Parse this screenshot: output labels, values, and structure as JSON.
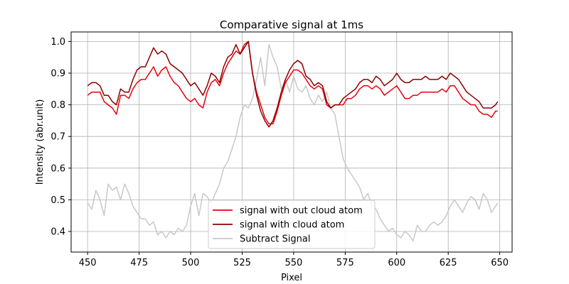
{
  "chart_data": {
    "type": "line",
    "title": "Comparative signal at 1ms",
    "xlabel": "Pixel",
    "ylabel": "Intensity (abr.unit)",
    "xlim": [
      442,
      656
    ],
    "ylim": [
      0.335,
      1.03
    ],
    "xticks": [
      450,
      475,
      500,
      525,
      550,
      575,
      600,
      625,
      650
    ],
    "yticks": [
      0.4,
      0.5,
      0.6,
      0.7,
      0.8,
      0.9,
      1.0
    ],
    "grid": true,
    "legend_position": "lower-center",
    "series": [
      {
        "name": "signal with out cloud atom",
        "color": "#e8000b",
        "x": [
          450,
          452,
          454,
          456,
          458,
          460,
          462,
          464,
          466,
          468,
          470,
          472,
          474,
          476,
          478,
          480,
          482,
          484,
          486,
          488,
          490,
          492,
          494,
          496,
          498,
          500,
          502,
          504,
          506,
          508,
          510,
          512,
          514,
          516,
          518,
          520,
          522,
          524,
          526,
          528,
          530,
          532,
          534,
          536,
          538,
          540,
          542,
          544,
          546,
          548,
          550,
          552,
          554,
          556,
          558,
          560,
          562,
          564,
          566,
          568,
          570,
          572,
          574,
          576,
          578,
          580,
          582,
          584,
          586,
          588,
          590,
          592,
          594,
          596,
          598,
          600,
          602,
          604,
          606,
          608,
          610,
          612,
          614,
          616,
          618,
          620,
          622,
          624,
          626,
          628,
          630,
          632,
          634,
          636,
          638,
          640,
          642,
          644,
          646,
          648,
          649
        ],
        "y": [
          0.83,
          0.84,
          0.84,
          0.84,
          0.81,
          0.8,
          0.79,
          0.77,
          0.83,
          0.83,
          0.82,
          0.85,
          0.87,
          0.88,
          0.88,
          0.9,
          0.92,
          0.89,
          0.91,
          0.92,
          0.89,
          0.87,
          0.86,
          0.84,
          0.82,
          0.81,
          0.82,
          0.8,
          0.79,
          0.84,
          0.87,
          0.88,
          0.86,
          0.9,
          0.93,
          0.95,
          0.97,
          0.96,
          0.99,
          1.0,
          0.9,
          0.84,
          0.8,
          0.76,
          0.74,
          0.74,
          0.78,
          0.83,
          0.87,
          0.89,
          0.91,
          0.91,
          0.9,
          0.88,
          0.86,
          0.85,
          0.86,
          0.85,
          0.8,
          0.79,
          0.8,
          0.8,
          0.8,
          0.82,
          0.82,
          0.83,
          0.85,
          0.86,
          0.86,
          0.85,
          0.86,
          0.85,
          0.83,
          0.84,
          0.85,
          0.86,
          0.84,
          0.82,
          0.82,
          0.83,
          0.83,
          0.84,
          0.84,
          0.84,
          0.84,
          0.84,
          0.85,
          0.84,
          0.86,
          0.86,
          0.84,
          0.82,
          0.81,
          0.8,
          0.8,
          0.78,
          0.77,
          0.77,
          0.76,
          0.78,
          0.78
        ]
      },
      {
        "name": "signal with cloud atom",
        "color": "#8b0000",
        "x": [
          450,
          452,
          454,
          456,
          458,
          460,
          462,
          464,
          466,
          468,
          470,
          472,
          474,
          476,
          478,
          480,
          482,
          484,
          486,
          488,
          490,
          492,
          494,
          496,
          498,
          500,
          502,
          504,
          506,
          508,
          510,
          512,
          514,
          516,
          518,
          520,
          522,
          524,
          526,
          528,
          530,
          532,
          534,
          536,
          538,
          540,
          542,
          544,
          546,
          548,
          550,
          552,
          554,
          556,
          558,
          560,
          562,
          564,
          566,
          568,
          570,
          572,
          574,
          576,
          578,
          580,
          582,
          584,
          586,
          588,
          590,
          592,
          594,
          596,
          598,
          600,
          602,
          604,
          606,
          608,
          610,
          612,
          614,
          616,
          618,
          620,
          622,
          624,
          626,
          628,
          630,
          632,
          634,
          636,
          638,
          640,
          642,
          644,
          646,
          648,
          649
        ],
        "y": [
          0.86,
          0.87,
          0.87,
          0.86,
          0.83,
          0.83,
          0.81,
          0.8,
          0.85,
          0.84,
          0.84,
          0.88,
          0.91,
          0.92,
          0.92,
          0.95,
          0.98,
          0.96,
          0.97,
          0.96,
          0.93,
          0.92,
          0.91,
          0.9,
          0.88,
          0.86,
          0.87,
          0.85,
          0.83,
          0.86,
          0.9,
          0.89,
          0.87,
          0.92,
          0.95,
          0.96,
          0.99,
          0.96,
          0.98,
          1.0,
          0.9,
          0.83,
          0.78,
          0.75,
          0.73,
          0.75,
          0.79,
          0.84,
          0.88,
          0.91,
          0.93,
          0.94,
          0.93,
          0.89,
          0.88,
          0.86,
          0.87,
          0.86,
          0.81,
          0.79,
          0.8,
          0.8,
          0.82,
          0.83,
          0.84,
          0.85,
          0.87,
          0.88,
          0.88,
          0.87,
          0.89,
          0.88,
          0.86,
          0.87,
          0.88,
          0.9,
          0.88,
          0.87,
          0.87,
          0.88,
          0.88,
          0.88,
          0.89,
          0.88,
          0.88,
          0.88,
          0.89,
          0.88,
          0.9,
          0.89,
          0.88,
          0.86,
          0.84,
          0.83,
          0.82,
          0.81,
          0.79,
          0.79,
          0.79,
          0.8,
          0.81
        ]
      },
      {
        "name": "Subtract Signal",
        "color": "#c8c8c8",
        "x": [
          450,
          452,
          454,
          456,
          458,
          460,
          462,
          464,
          466,
          468,
          470,
          472,
          474,
          476,
          478,
          480,
          482,
          484,
          486,
          488,
          490,
          492,
          494,
          496,
          498,
          500,
          502,
          504,
          506,
          508,
          510,
          512,
          514,
          516,
          518,
          520,
          522,
          524,
          526,
          528,
          530,
          532,
          534,
          536,
          538,
          540,
          542,
          544,
          546,
          548,
          550,
          552,
          554,
          556,
          558,
          560,
          562,
          564,
          566,
          568,
          570,
          572,
          574,
          576,
          578,
          580,
          582,
          584,
          586,
          588,
          590,
          592,
          594,
          596,
          598,
          600,
          602,
          604,
          606,
          608,
          610,
          612,
          614,
          616,
          618,
          620,
          622,
          624,
          626,
          628,
          630,
          632,
          634,
          636,
          638,
          640,
          642,
          644,
          646,
          648,
          649
        ],
        "y": [
          0.49,
          0.47,
          0.53,
          0.5,
          0.45,
          0.55,
          0.53,
          0.54,
          0.5,
          0.55,
          0.52,
          0.48,
          0.46,
          0.44,
          0.44,
          0.42,
          0.43,
          0.39,
          0.4,
          0.38,
          0.4,
          0.39,
          0.41,
          0.4,
          0.42,
          0.48,
          0.52,
          0.45,
          0.52,
          0.51,
          0.49,
          0.52,
          0.55,
          0.6,
          0.62,
          0.66,
          0.7,
          0.76,
          0.8,
          0.79,
          0.82,
          0.88,
          0.95,
          0.86,
          0.99,
          0.95,
          0.92,
          0.85,
          0.88,
          0.84,
          0.89,
          0.85,
          0.84,
          0.86,
          0.82,
          0.8,
          0.83,
          0.81,
          0.84,
          0.79,
          0.77,
          0.7,
          0.63,
          0.6,
          0.58,
          0.56,
          0.54,
          0.5,
          0.52,
          0.48,
          0.47,
          0.44,
          0.42,
          0.4,
          0.41,
          0.39,
          0.38,
          0.4,
          0.39,
          0.37,
          0.42,
          0.4,
          0.4,
          0.42,
          0.43,
          0.42,
          0.43,
          0.45,
          0.48,
          0.5,
          0.48,
          0.46,
          0.49,
          0.51,
          0.5,
          0.47,
          0.52,
          0.5,
          0.46,
          0.48,
          0.49
        ]
      }
    ]
  }
}
